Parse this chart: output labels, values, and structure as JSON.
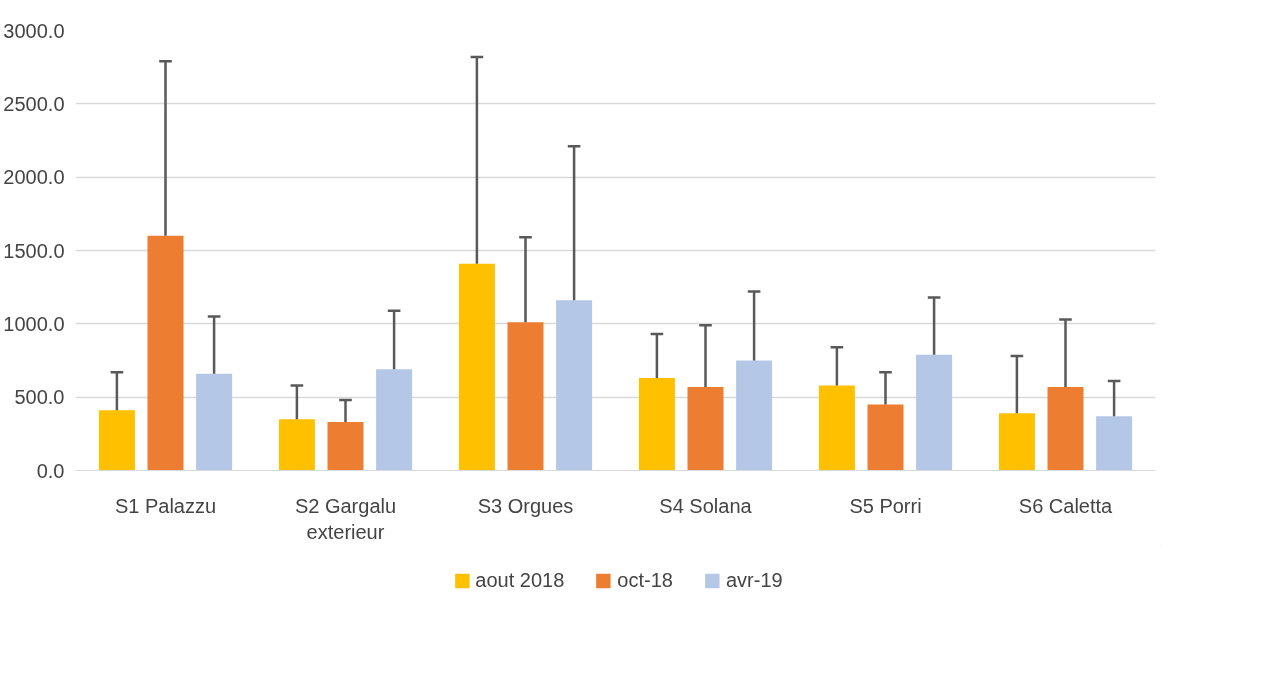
{
  "chart_data": {
    "type": "bar",
    "categories": [
      "S1 Palazzu",
      "S2 Gargalu exterieur",
      "S3 Orgues",
      "S4 Solana",
      "S5 Porri",
      "S6 Caletta"
    ],
    "series": [
      {
        "name": "aout 2018",
        "color": "#ffc000",
        "values": [
          410,
          350,
          1410,
          630,
          580,
          390
        ],
        "errors": [
          [
            410,
            670
          ],
          [
            350,
            580
          ],
          [
            1410,
            2820
          ],
          [
            630,
            930
          ],
          [
            580,
            840
          ],
          [
            390,
            780
          ]
        ]
      },
      {
        "name": "oct-18",
        "color": "#ed7d31",
        "values": [
          1600,
          330,
          1010,
          570,
          450,
          570
        ],
        "errors": [
          [
            1600,
            2790
          ],
          [
            330,
            480
          ],
          [
            1010,
            1590
          ],
          [
            570,
            990
          ],
          [
            450,
            670
          ],
          [
            570,
            1030
          ]
        ]
      },
      {
        "name": "avr-19",
        "color": "#b4c7e7",
        "values": [
          660,
          690,
          1160,
          750,
          790,
          370
        ],
        "errors": [
          [
            660,
            1050
          ],
          [
            690,
            1090
          ],
          [
            1160,
            2210
          ],
          [
            750,
            1220
          ],
          [
            790,
            1180
          ],
          [
            370,
            610
          ]
        ]
      }
    ],
    "ylim": [
      0,
      3000
    ],
    "yticks": [
      {
        "value": 0,
        "label": "0.0"
      },
      {
        "value": 500,
        "label": "500.0"
      },
      {
        "value": 1000,
        "label": "1000.0"
      },
      {
        "value": 1500,
        "label": "1500.0"
      },
      {
        "value": 2000,
        "label": "2000.0"
      },
      {
        "value": 2500,
        "label": "2500.0"
      },
      {
        "value": 3000,
        "label": "3000.0"
      }
    ],
    "grid": "y",
    "legend": "bottom"
  }
}
